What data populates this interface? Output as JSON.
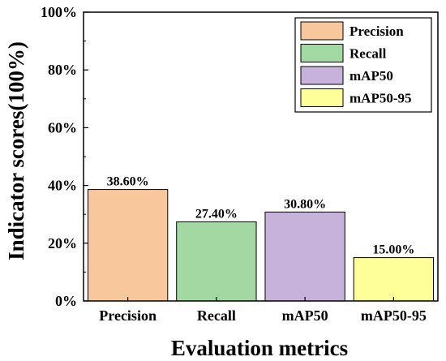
{
  "chart_data": {
    "type": "bar",
    "title": "",
    "xlabel": "Evaluation metrics",
    "ylabel": "Indicator scores(100%)",
    "categories": [
      "Precision",
      "Recall",
      "mAP50",
      "mAP50-95"
    ],
    "values": [
      38.6,
      27.4,
      30.8,
      15.0
    ],
    "data_labels": [
      "38.60%",
      "27.40%",
      "30.80%",
      "15.00%"
    ],
    "ylim": [
      0,
      100
    ],
    "yticks": [
      0,
      20,
      40,
      60,
      80,
      100
    ],
    "ytick_labels": [
      "0%",
      "20%",
      "40%",
      "60%",
      "80%",
      "100%"
    ],
    "colors": [
      "#F8C79C",
      "#A2D9A3",
      "#C6B2DB",
      "#FFFF99"
    ],
    "legend": {
      "placement": "top-right",
      "entries": [
        "Precision",
        "Recall",
        "mAP50",
        "mAP50-95"
      ]
    },
    "grid": false
  }
}
